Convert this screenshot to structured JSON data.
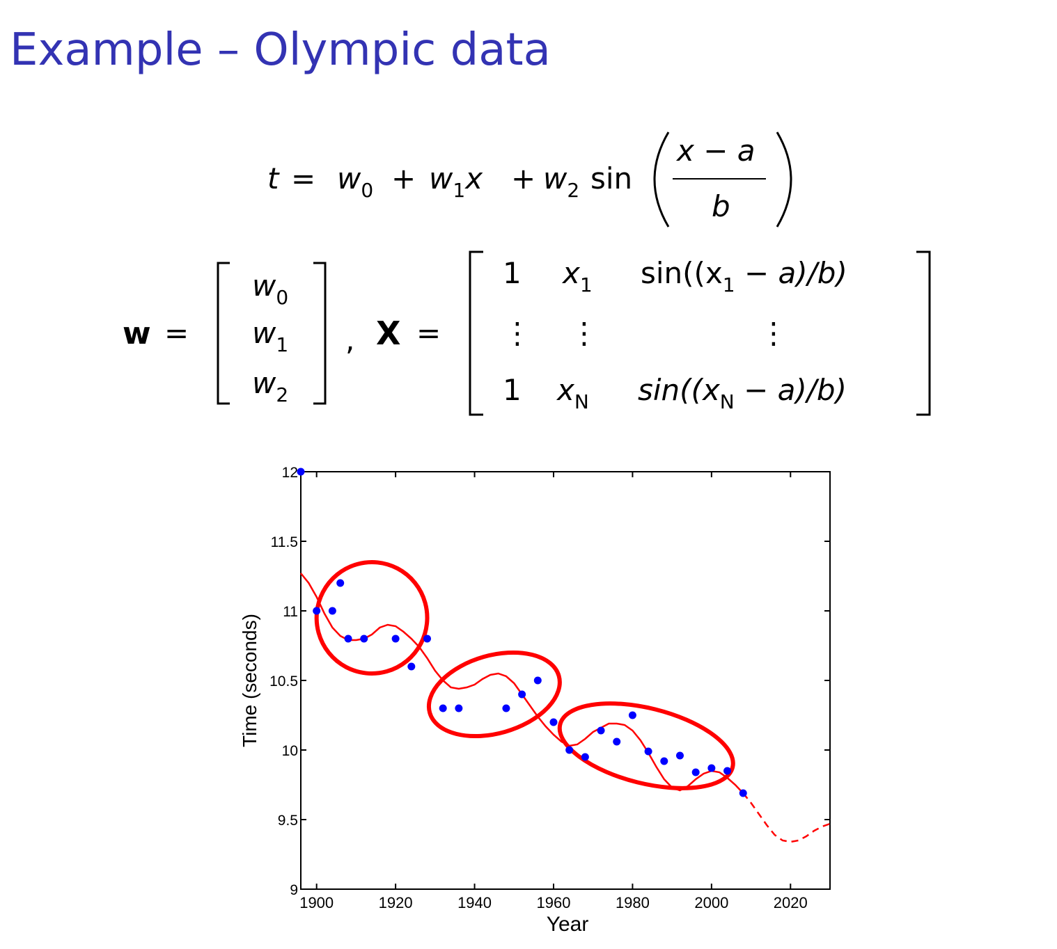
{
  "slide": {
    "title": "Example – Olympic data"
  },
  "equation1": {
    "lhs": "t",
    "eq": "=",
    "w0": "w",
    "w0_sub": "0",
    "plus1": "+",
    "w1": "w",
    "w1_sub": "1",
    "x": "x",
    "plus2": "+",
    "w2": "w",
    "w2_sub": "2",
    "sin": "sin",
    "num": "x − a",
    "den": "b"
  },
  "equation2": {
    "w_bold": "w",
    "eq1": "=",
    "w_vec": [
      {
        "sym": "w",
        "sub": "0"
      },
      {
        "sym": "w",
        "sub": "1"
      },
      {
        "sym": "w",
        "sub": "2"
      }
    ],
    "comma": ",",
    "X_bold": "X",
    "eq2": "=",
    "row1": {
      "c1": "1",
      "c2": "x",
      "c2_sub": "1",
      "c3a": "sin((x",
      "c3_sub": "1",
      "c3b": " − a)/b)"
    },
    "row2": {
      "c1": "⋮",
      "c2": "⋮",
      "c3": "⋮"
    },
    "row3": {
      "c1": "1",
      "c2": "x",
      "c2_sub": "N",
      "c3a": "sin((x",
      "c3_sub": "N",
      "c3b": " − a)/b)"
    }
  },
  "chart_data": {
    "type": "scatter",
    "title": "",
    "xlabel": "Year",
    "ylabel": "Time (seconds)",
    "xlim": [
      1896,
      2030
    ],
    "ylim": [
      9,
      12
    ],
    "xticks": [
      1900,
      1920,
      1940,
      1960,
      1980,
      2000,
      2020
    ],
    "yticks": [
      9,
      9.5,
      10,
      10.5,
      11,
      11.5,
      12
    ],
    "ytick_labels": [
      "9",
      "9.5",
      "10",
      "10.5",
      "11",
      "11.5",
      "12"
    ],
    "grid": false,
    "series": [
      {
        "kind": "points",
        "color": "#0000ff",
        "x": [
          1896,
          1900,
          1904,
          1906,
          1908,
          1912,
          1920,
          1924,
          1928,
          1932,
          1936,
          1948,
          1952,
          1956,
          1960,
          1964,
          1968,
          1972,
          1976,
          1980,
          1984,
          1988,
          1992,
          1996,
          2000,
          2004,
          2008
        ],
        "y": [
          12.0,
          11.0,
          11.0,
          11.2,
          10.8,
          10.8,
          10.8,
          10.6,
          10.8,
          10.3,
          10.3,
          10.3,
          10.4,
          10.5,
          10.2,
          10.0,
          9.95,
          10.14,
          10.06,
          10.25,
          9.99,
          9.92,
          9.96,
          9.84,
          9.87,
          9.85,
          9.69
        ]
      },
      {
        "kind": "fit-line",
        "color": "#ff0000",
        "x": [
          1896,
          1898,
          1900,
          1902,
          1904,
          1906,
          1908,
          1910,
          1912,
          1914,
          1916,
          1918,
          1920,
          1922,
          1924,
          1926,
          1928,
          1930,
          1932,
          1934,
          1936,
          1938,
          1940,
          1942,
          1944,
          1946,
          1948,
          1950,
          1952,
          1954,
          1956,
          1958,
          1960,
          1962,
          1964,
          1966,
          1968,
          1970,
          1972,
          1974,
          1976,
          1978,
          1980,
          1982,
          1984,
          1986,
          1988,
          1990,
          1992,
          1994,
          1996,
          1998,
          2000,
          2002,
          2004,
          2006,
          2008
        ],
        "y": [
          11.27,
          11.2,
          11.1,
          10.98,
          10.88,
          10.82,
          10.79,
          10.79,
          10.8,
          10.83,
          10.88,
          10.9,
          10.89,
          10.85,
          10.8,
          10.74,
          10.66,
          10.57,
          10.5,
          10.45,
          10.44,
          10.45,
          10.47,
          10.51,
          10.54,
          10.55,
          10.53,
          10.48,
          10.4,
          10.32,
          10.24,
          10.17,
          10.11,
          10.06,
          10.03,
          10.04,
          10.08,
          10.13,
          10.16,
          10.19,
          10.19,
          10.18,
          10.14,
          10.07,
          9.98,
          9.88,
          9.79,
          9.73,
          9.71,
          9.74,
          9.79,
          9.83,
          9.85,
          9.84,
          9.8,
          9.75,
          9.69
        ]
      },
      {
        "kind": "prediction",
        "color": "#ff0000",
        "x": [
          2008,
          2010,
          2012,
          2014,
          2016,
          2018,
          2020,
          2022,
          2024,
          2026,
          2028,
          2030
        ],
        "y": [
          9.69,
          9.62,
          9.54,
          9.46,
          9.39,
          9.35,
          9.34,
          9.35,
          9.38,
          9.42,
          9.45,
          9.47
        ]
      }
    ],
    "annotations": [
      {
        "kind": "hand-drawn-ellipse",
        "color": "#ff0000",
        "x_range": [
          1900,
          1928
        ],
        "y_range": [
          10.55,
          11.35
        ]
      },
      {
        "kind": "hand-drawn-ellipse",
        "color": "#ff0000",
        "x_range": [
          1928,
          1962
        ],
        "y_range": [
          10.12,
          10.68
        ]
      },
      {
        "kind": "hand-drawn-ellipse",
        "color": "#ff0000",
        "x_range": [
          1961,
          2006
        ],
        "y_range": [
          9.76,
          10.3
        ]
      }
    ]
  }
}
